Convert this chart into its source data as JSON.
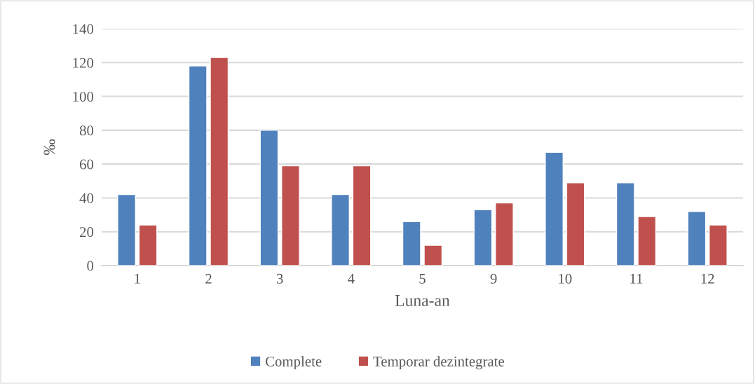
{
  "chart_data": {
    "type": "bar",
    "xlabel": "Luna-an",
    "ylabel": "‰",
    "categories": [
      "1",
      "2",
      "3",
      "4",
      "5",
      "9",
      "10",
      "11",
      "12"
    ],
    "series": [
      {
        "name": "Complete",
        "color": "#4f81bd",
        "values": [
          42,
          118,
          80,
          42,
          26,
          33,
          67,
          49,
          32
        ]
      },
      {
        "name": "Temporar dezintegrate",
        "color": "#c0504d",
        "values": [
          24,
          123,
          59,
          59,
          12,
          37,
          49,
          29,
          24
        ]
      }
    ],
    "ylim": [
      0,
      140
    ],
    "yticks": [
      0,
      20,
      40,
      60,
      80,
      100,
      120,
      140
    ],
    "grid": "y",
    "legend": "bottom"
  }
}
